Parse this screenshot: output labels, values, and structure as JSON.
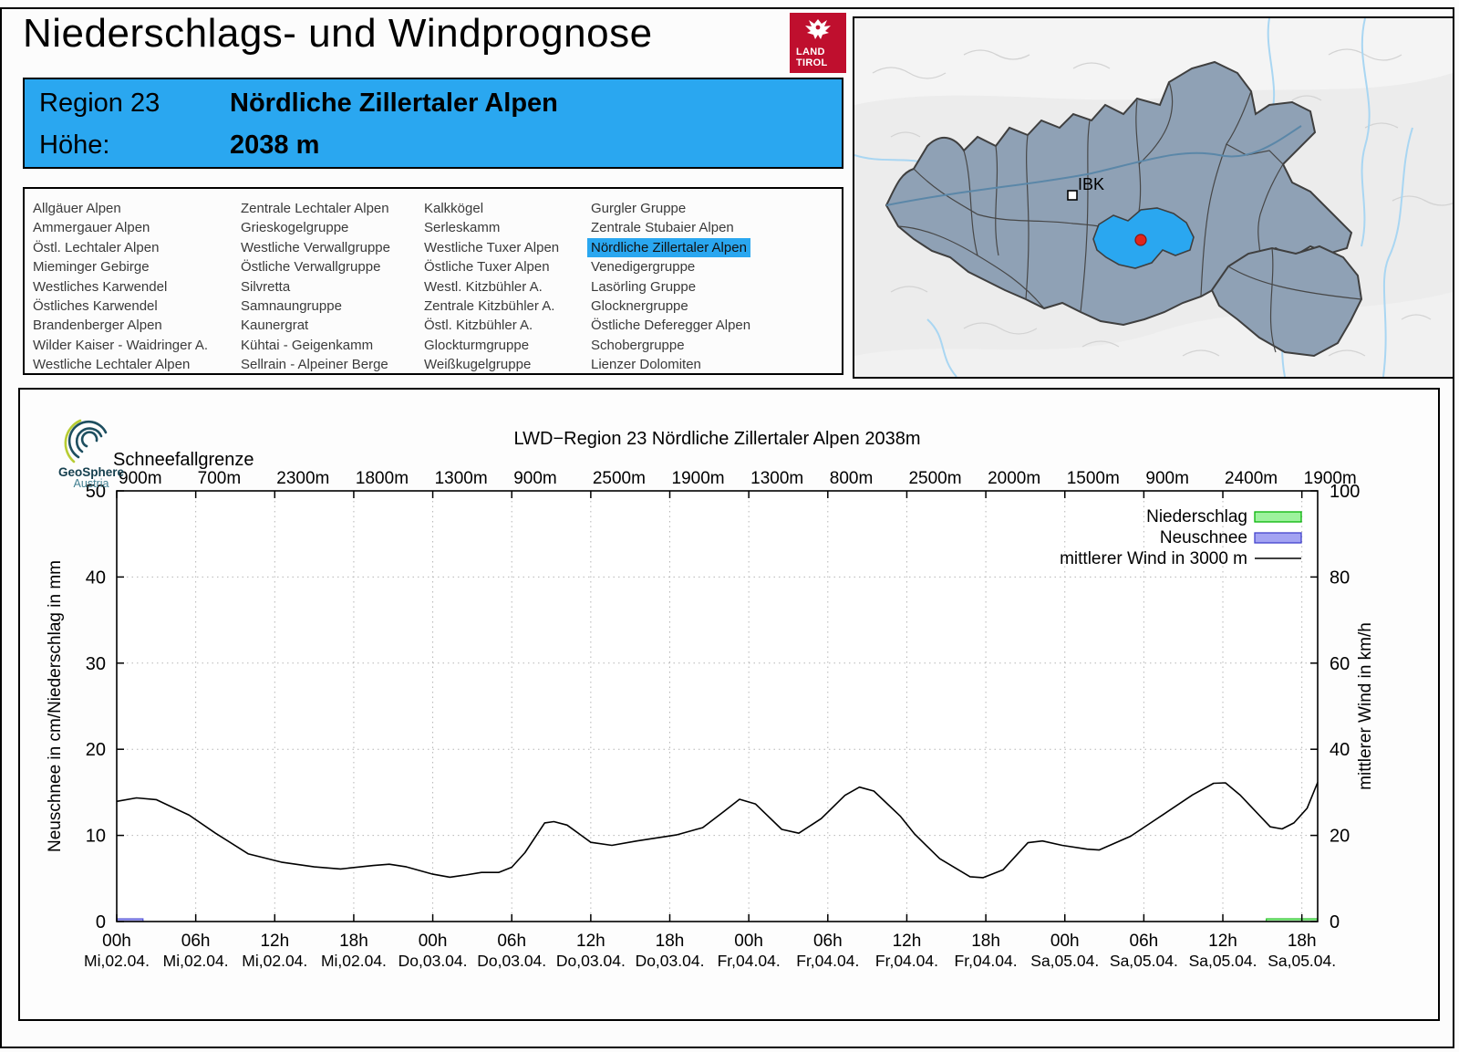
{
  "page": {
    "title": "Niederschlags- und Windprognose"
  },
  "logo_tirol": {
    "line1": "LAND",
    "line2": "TIROL"
  },
  "header": {
    "region_label": "Region 23",
    "region_name": "Nördliche Zillertaler Alpen",
    "altitude_label": "Höhe:",
    "altitude_value": "2038 m",
    "bg_color": "#2aa7f0"
  },
  "region_list": {
    "highlighted": "Nördliche Zillertaler Alpen",
    "columns": [
      [
        "Allgäuer Alpen",
        "Ammergauer Alpen",
        "Östl. Lechtaler Alpen",
        "Mieminger Gebirge",
        "Westliches Karwendel",
        "Östliches Karwendel",
        "Brandenberger Alpen",
        "Wilder Kaiser - Waidringer A.",
        "Westliche Lechtaler Alpen"
      ],
      [
        "Zentrale Lechtaler Alpen",
        "Grieskogelgruppe",
        "Westliche Verwallgruppe",
        "Östliche Verwallgruppe",
        "Silvretta",
        "Samnaungruppe",
        "Kaunergrat",
        "Kühtai - Geigenkamm",
        "Sellrain - Alpeiner Berge"
      ],
      [
        "Kalkkögel",
        "Serleskamm",
        "Westliche Tuxer Alpen",
        "Östliche Tuxer Alpen",
        "Westl. Kitzbühler A.",
        "Zentrale Kitzbühler A.",
        "Östl. Kitzbühler A.",
        "Glockturmgruppe",
        "Weißkugelgruppe"
      ],
      [
        "Gurgler Gruppe",
        "Zentrale Stubaier Alpen",
        "Nördliche Zillertaler Alpen",
        "Venedigergruppe",
        "Lasörling Gruppe",
        "Glocknergruppe",
        "Östliche Deferegger Alpen",
        "Schobergruppe",
        "Lienzer Dolomiten"
      ]
    ]
  },
  "map": {
    "city_label": "IBK",
    "highlight_color": "#2aa7f0",
    "marker_color": "#e0251c",
    "region_fill": "#8fa1b5"
  },
  "geosphere_logo": {
    "line1": "GeoSphere",
    "line2": "Austria"
  },
  "chart_data": {
    "type": "line",
    "title": "LWD−Region 23 Nördliche Zillertaler Alpen 2038m",
    "snowline_label": "Schneefallgrenze",
    "snowline_values": [
      "900m",
      "700m",
      "2300m",
      "1800m",
      "1300m",
      "900m",
      "2500m",
      "1900m",
      "1300m",
      "800m",
      "2500m",
      "2000m",
      "1500m",
      "900m",
      "2400m",
      "1900m"
    ],
    "ylabel_left": "Neuschnee in cm/Niederschlag in mm",
    "ylabel_right": "mittlerer Wind in km/h",
    "ylim_left": [
      0,
      50
    ],
    "ylim_right": [
      0,
      100
    ],
    "yticks_left": [
      0,
      10,
      20,
      30,
      40,
      50
    ],
    "yticks_right": [
      0,
      20,
      40,
      60,
      80,
      100
    ],
    "grid": true,
    "legend_position": "top-right",
    "x_hours_total": 91.2,
    "xticks": [
      {
        "hour": 0,
        "time": "00h",
        "date": "Mi,02.04."
      },
      {
        "hour": 6,
        "time": "06h",
        "date": "Mi,02.04."
      },
      {
        "hour": 12,
        "time": "12h",
        "date": "Mi,02.04."
      },
      {
        "hour": 18,
        "time": "18h",
        "date": "Mi,02.04."
      },
      {
        "hour": 24,
        "time": "00h",
        "date": "Do,03.04."
      },
      {
        "hour": 30,
        "time": "06h",
        "date": "Do,03.04."
      },
      {
        "hour": 36,
        "time": "12h",
        "date": "Do,03.04."
      },
      {
        "hour": 42,
        "time": "18h",
        "date": "Do,03.04."
      },
      {
        "hour": 48,
        "time": "00h",
        "date": "Fr,04.04."
      },
      {
        "hour": 54,
        "time": "06h",
        "date": "Fr,04.04."
      },
      {
        "hour": 60,
        "time": "12h",
        "date": "Fr,04.04."
      },
      {
        "hour": 66,
        "time": "18h",
        "date": "Fr,04.04."
      },
      {
        "hour": 72,
        "time": "00h",
        "date": "Sa,05.04."
      },
      {
        "hour": 78,
        "time": "06h",
        "date": "Sa,05.04."
      },
      {
        "hour": 84,
        "time": "12h",
        "date": "Sa,05.04."
      },
      {
        "hour": 90,
        "time": "18h",
        "date": "Sa,05.04."
      }
    ],
    "legend": [
      {
        "label": "Niederschlag",
        "swatch": "box",
        "fill": "#9df29d",
        "stroke": "#09b509"
      },
      {
        "label": "Neuschnee",
        "swatch": "box",
        "fill": "#a3a3f2",
        "stroke": "#4242cc"
      },
      {
        "label": "mittlerer Wind in 3000 m",
        "swatch": "line",
        "stroke": "#000000"
      }
    ],
    "wind_series": {
      "name": "mittlerer Wind in 3000 m",
      "unit": "km/h",
      "points": [
        [
          0,
          27.9
        ],
        [
          1.5,
          28.7
        ],
        [
          3,
          28.3
        ],
        [
          5.5,
          24.7
        ],
        [
          7.5,
          20.5
        ],
        [
          10,
          15.7
        ],
        [
          12.5,
          13.8
        ],
        [
          15,
          12.7
        ],
        [
          17,
          12.2
        ],
        [
          19.5,
          13.0
        ],
        [
          20.7,
          13.3
        ],
        [
          22,
          12.7
        ],
        [
          24,
          11.0
        ],
        [
          25.3,
          10.3
        ],
        [
          26.5,
          10.8
        ],
        [
          27.7,
          11.4
        ],
        [
          29,
          11.4
        ],
        [
          30,
          12.6
        ],
        [
          31,
          16.0
        ],
        [
          32.5,
          22.9
        ],
        [
          33.2,
          23.2
        ],
        [
          34.2,
          22.4
        ],
        [
          36,
          18.4
        ],
        [
          37.6,
          17.7
        ],
        [
          39.5,
          18.7
        ],
        [
          42.5,
          20.1
        ],
        [
          44.5,
          21.8
        ],
        [
          46.3,
          26.0
        ],
        [
          47.3,
          28.4
        ],
        [
          48.5,
          27.3
        ],
        [
          50.5,
          21.4
        ],
        [
          51.8,
          20.5
        ],
        [
          53.5,
          23.9
        ],
        [
          55.3,
          29.3
        ],
        [
          56.4,
          31.2
        ],
        [
          57.5,
          30.3
        ],
        [
          59.5,
          24.5
        ],
        [
          60.6,
          20.3
        ],
        [
          62.5,
          14.6
        ],
        [
          64.8,
          10.4
        ],
        [
          65.8,
          10.2
        ],
        [
          67.3,
          12.0
        ],
        [
          69.2,
          18.3
        ],
        [
          70.3,
          18.7
        ],
        [
          71.8,
          17.7
        ],
        [
          73.7,
          16.8
        ],
        [
          74.6,
          16.6
        ],
        [
          77,
          19.8
        ],
        [
          79.4,
          24.7
        ],
        [
          81.7,
          29.4
        ],
        [
          83.3,
          32.1
        ],
        [
          84.2,
          32.2
        ],
        [
          85.3,
          29.4
        ],
        [
          87.6,
          22.0
        ],
        [
          88.5,
          21.5
        ],
        [
          89.4,
          22.9
        ],
        [
          90.4,
          26.3
        ],
        [
          91.2,
          32.3
        ]
      ]
    },
    "neuschnee_bars": [
      {
        "from_hour": 0,
        "to_hour": 2,
        "value_cm": 0.3
      }
    ],
    "niederschlag_bars": [
      {
        "from_hour": 87.3,
        "to_hour": 91.2,
        "value_mm": 0.3
      }
    ]
  }
}
